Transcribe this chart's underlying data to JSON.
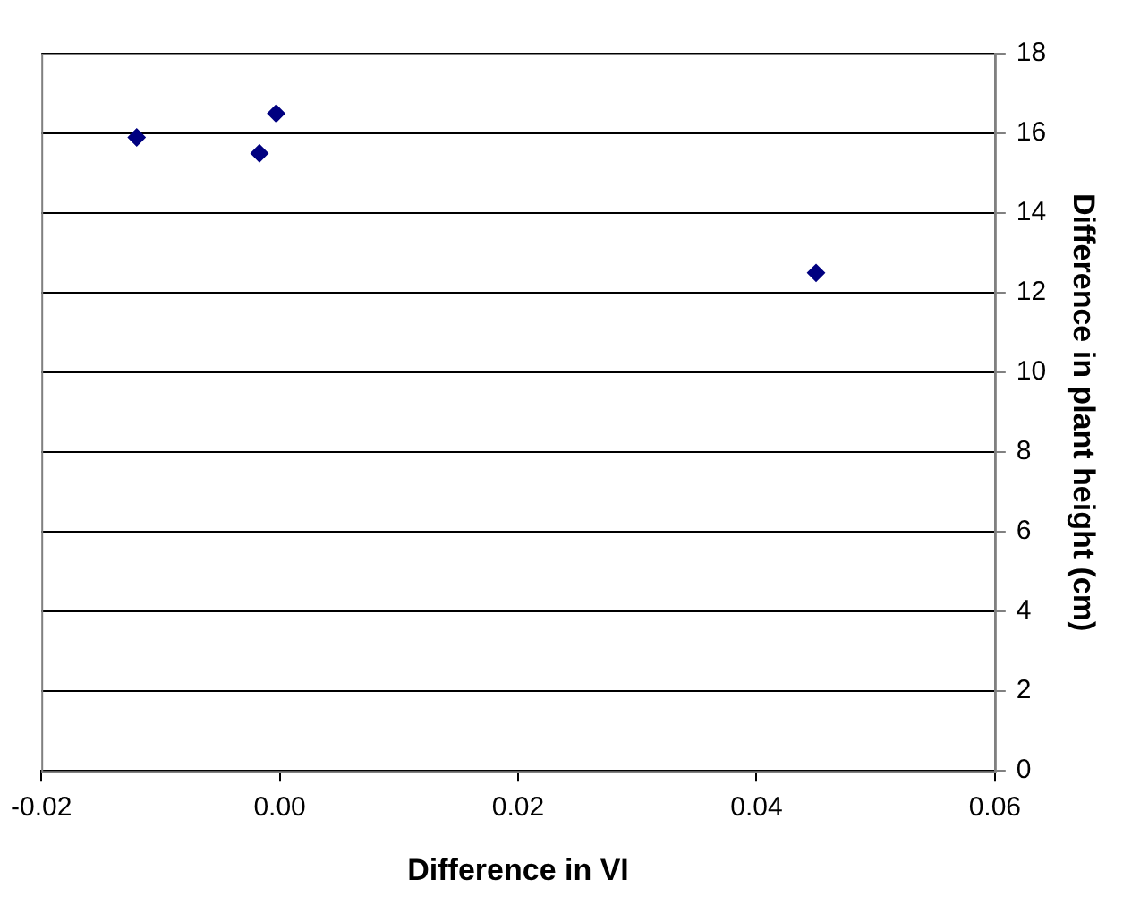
{
  "chart_data": {
    "type": "scatter",
    "xlabel": "Difference in VI",
    "ylabel": "Difference in plant height (cm)",
    "series": [
      {
        "color": "#000080",
        "x": [
          -0.012,
          -0.0017,
          -0.0003,
          0.045
        ],
        "values": [
          15.9,
          15.5,
          16.5,
          12.5
        ]
      }
    ],
    "xlim": [
      -0.02,
      0.06
    ],
    "xticks": [
      {
        "value": -0.02,
        "label": "-0.02"
      },
      {
        "value": 0,
        "label": "0.00"
      },
      {
        "value": 0.02,
        "label": "0.02"
      },
      {
        "value": 0.04,
        "label": "0.04"
      },
      {
        "value": 0.06,
        "label": "0.06"
      }
    ],
    "ylim": [
      0,
      18
    ],
    "yticks": [
      0,
      2,
      4,
      6,
      8,
      10,
      12,
      14,
      16,
      18
    ],
    "grid": "y",
    "marker": "diamond",
    "legend": false
  }
}
